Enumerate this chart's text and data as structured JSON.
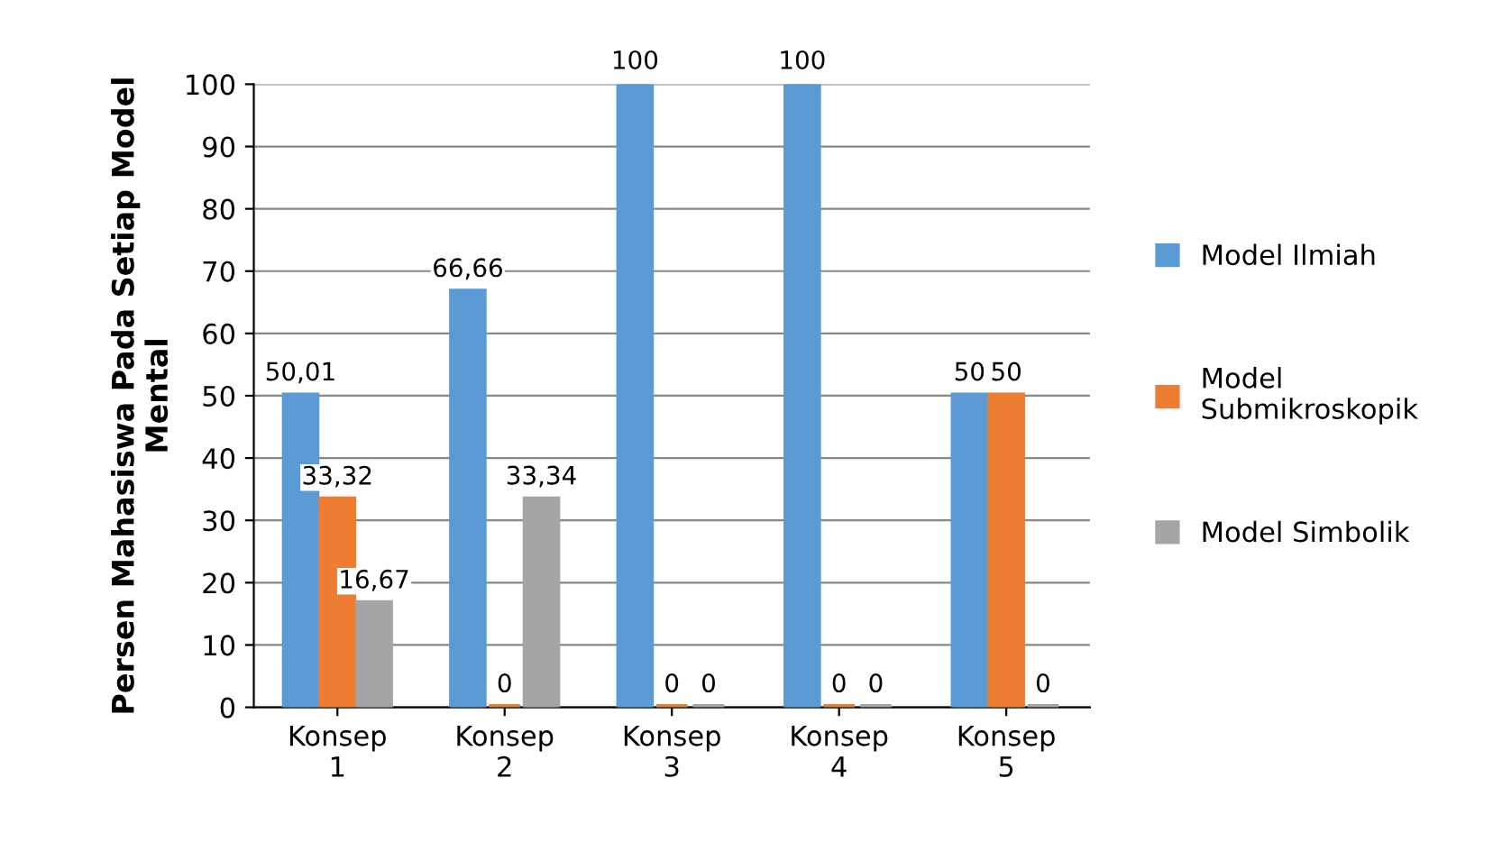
{
  "chart_data": {
    "type": "bar",
    "ylabel": "Persen Mahasiswa Pada Setiap Model\nMental",
    "categories": [
      "Konsep\n1",
      "Konsep\n2",
      "Konsep\n3",
      "Konsep\n4",
      "Konsep\n5"
    ],
    "series": [
      {
        "name": "Model Ilmiah",
        "color": "#5b9bd5",
        "values": [
          50.01,
          66.66,
          100,
          100,
          50
        ],
        "value_labels": [
          "50,01",
          "66,66",
          "100",
          "100",
          "50"
        ]
      },
      {
        "name": "Model\nSubmikroskopik",
        "color": "#ed7d31",
        "values": [
          33.32,
          0,
          0,
          0,
          50
        ],
        "value_labels": [
          "33,32",
          "0",
          "0",
          "0",
          "50"
        ]
      },
      {
        "name": "Model Simbolik",
        "color": "#a5a5a5",
        "values": [
          16.67,
          33.34,
          0,
          0,
          0
        ],
        "value_labels": [
          "16,67",
          "33,34",
          "0",
          "0",
          "0"
        ]
      }
    ],
    "ylim": [
      0,
      100
    ],
    "yticks": [
      0,
      10,
      20,
      30,
      40,
      50,
      60,
      70,
      80,
      90,
      100
    ],
    "grid": "y",
    "legend": "right"
  }
}
